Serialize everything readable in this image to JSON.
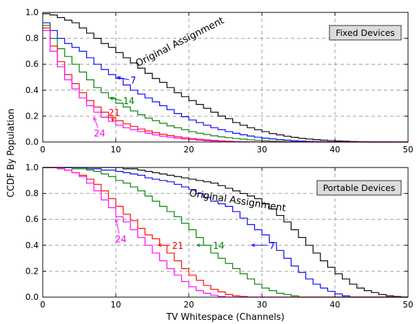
{
  "figure": {
    "ylabel": "CCDF By Population",
    "xlabel": "TV Whitespace (Channels)"
  },
  "chart_data": [
    {
      "type": "line",
      "step": true,
      "title": "Fixed Devices",
      "legend_placement": "top-right",
      "xlim": [
        0,
        50
      ],
      "ylim": [
        0,
        1.0
      ],
      "xticks": [
        "0",
        "10",
        "20",
        "30",
        "40",
        "50"
      ],
      "yticks": [
        "0.0",
        "0.2",
        "0.4",
        "0.6",
        "0.8",
        "1.0"
      ],
      "grid": true,
      "x": [
        0,
        1,
        2,
        3,
        4,
        5,
        6,
        7,
        8,
        9,
        10,
        11,
        12,
        13,
        14,
        15,
        16,
        17,
        18,
        19,
        20,
        21,
        22,
        23,
        24,
        25,
        26,
        27,
        28,
        29,
        30,
        31,
        32,
        33,
        34,
        35,
        36,
        37,
        38,
        39,
        40,
        41,
        42,
        43,
        44,
        45,
        46,
        47,
        48,
        49,
        50
      ],
      "series": [
        {
          "name": "Original Assignment",
          "color": "#000000",
          "values": [
            0.99,
            0.98,
            0.96,
            0.94,
            0.92,
            0.88,
            0.84,
            0.8,
            0.76,
            0.73,
            0.69,
            0.65,
            0.61,
            0.57,
            0.53,
            0.49,
            0.46,
            0.42,
            0.38,
            0.35,
            0.32,
            0.29,
            0.26,
            0.23,
            0.2,
            0.18,
            0.15,
            0.13,
            0.11,
            0.095,
            0.08,
            0.065,
            0.055,
            0.045,
            0.036,
            0.029,
            0.023,
            0.018,
            0.014,
            0.011,
            0.008,
            0.006,
            0.004,
            0.003,
            0.002,
            0.0015,
            0.001,
            0.0007,
            0.0004,
            0.0002,
            0.0
          ]
        },
        {
          "name": "7",
          "color": "#0000ff",
          "values": [
            0.92,
            0.86,
            0.8,
            0.76,
            0.73,
            0.7,
            0.65,
            0.6,
            0.56,
            0.52,
            0.49,
            0.44,
            0.4,
            0.37,
            0.34,
            0.31,
            0.28,
            0.25,
            0.22,
            0.195,
            0.17,
            0.15,
            0.13,
            0.11,
            0.095,
            0.08,
            0.067,
            0.056,
            0.046,
            0.037,
            0.03,
            0.024,
            0.018,
            0.014,
            0.01,
            0.007,
            0.005,
            0.0035,
            0.0025,
            0.0018,
            0.0012,
            0.0008,
            0.0005,
            0.0003,
            0.0002,
            0.0001,
            0.0,
            0.0,
            0.0,
            0.0,
            0.0
          ]
        },
        {
          "name": "14",
          "color": "#008000",
          "values": [
            0.9,
            0.8,
            0.72,
            0.66,
            0.6,
            0.54,
            0.48,
            0.42,
            0.38,
            0.34,
            0.3,
            0.27,
            0.24,
            0.21,
            0.185,
            0.165,
            0.145,
            0.125,
            0.11,
            0.095,
            0.08,
            0.068,
            0.058,
            0.048,
            0.04,
            0.033,
            0.027,
            0.022,
            0.017,
            0.013,
            0.01,
            0.007,
            0.005,
            0.0035,
            0.0025,
            0.0017,
            0.001,
            0.0006,
            0.0003,
            0.0001,
            0.0,
            0.0,
            0.0,
            0.0,
            0.0,
            0.0,
            0.0,
            0.0,
            0.0,
            0.0,
            0.0
          ]
        },
        {
          "name": "21",
          "color": "#ff0000",
          "values": [
            0.88,
            0.74,
            0.62,
            0.52,
            0.45,
            0.38,
            0.32,
            0.27,
            0.23,
            0.19,
            0.165,
            0.14,
            0.12,
            0.1,
            0.085,
            0.072,
            0.06,
            0.05,
            0.041,
            0.033,
            0.027,
            0.021,
            0.016,
            0.012,
            0.009,
            0.006,
            0.004,
            0.0025,
            0.0015,
            0.0008,
            0.0,
            0.0,
            0.0,
            0.0,
            0.0,
            0.0,
            0.0,
            0.0,
            0.0,
            0.0,
            0.0,
            0.0,
            0.0,
            0.0,
            0.0,
            0.0,
            0.0,
            0.0,
            0.0,
            0.0,
            0.0
          ]
        },
        {
          "name": "24",
          "color": "#ff00ff",
          "values": [
            0.86,
            0.7,
            0.58,
            0.48,
            0.41,
            0.34,
            0.28,
            0.23,
            0.19,
            0.16,
            0.13,
            0.11,
            0.095,
            0.08,
            0.067,
            0.055,
            0.045,
            0.037,
            0.03,
            0.024,
            0.019,
            0.014,
            0.01,
            0.007,
            0.005,
            0.003,
            0.0018,
            0.001,
            0.0005,
            0.0002,
            0.0,
            0.0,
            0.0,
            0.0,
            0.0,
            0.0,
            0.0,
            0.0,
            0.0,
            0.0,
            0.0,
            0.0,
            0.0,
            0.0,
            0.0,
            0.0,
            0.0,
            0.0,
            0.0,
            0.0,
            0.0
          ]
        }
      ],
      "annotations": [
        {
          "text": "Original Assignment",
          "x": 13,
          "y": 0.58,
          "angle": -27,
          "color": "#000000"
        },
        {
          "text": "7",
          "x": 12,
          "y": 0.48,
          "color": "#0000ff",
          "arrow_to": [
            10.2,
            0.5
          ]
        },
        {
          "text": "14",
          "x": 11,
          "y": 0.32,
          "color": "#008000",
          "arrow_to": [
            9.2,
            0.34
          ]
        },
        {
          "text": "21",
          "x": 9,
          "y": 0.23,
          "color": "#ff0000",
          "arrow_to": [
            9.6,
            0.16
          ]
        },
        {
          "text": "24",
          "x": 7,
          "y": 0.07,
          "color": "#ff00ff",
          "arrow_to": [
            7,
            0.19
          ]
        }
      ]
    },
    {
      "type": "line",
      "step": true,
      "title": "Portable Devices",
      "legend_placement": "top-right",
      "xlim": [
        0,
        50
      ],
      "ylim": [
        0,
        1.0
      ],
      "xticks": [
        "0",
        "10",
        "20",
        "30",
        "40",
        "50"
      ],
      "yticks": [
        "0.0",
        "0.2",
        "0.4",
        "0.6",
        "0.8",
        "1.0"
      ],
      "grid": true,
      "x": [
        0,
        1,
        2,
        3,
        4,
        5,
        6,
        7,
        8,
        9,
        10,
        11,
        12,
        13,
        14,
        15,
        16,
        17,
        18,
        19,
        20,
        21,
        22,
        23,
        24,
        25,
        26,
        27,
        28,
        29,
        30,
        31,
        32,
        33,
        34,
        35,
        36,
        37,
        38,
        39,
        40,
        41,
        42,
        43,
        44,
        45,
        46,
        47,
        48,
        49,
        50
      ],
      "series": [
        {
          "name": "Original Assignment",
          "color": "#000000",
          "values": [
            1.0,
            1.0,
            1.0,
            1.0,
            1.0,
            1.0,
            1.0,
            1.0,
            1.0,
            1.0,
            1.0,
            0.99,
            0.99,
            0.98,
            0.97,
            0.96,
            0.95,
            0.94,
            0.93,
            0.92,
            0.91,
            0.9,
            0.89,
            0.88,
            0.86,
            0.84,
            0.82,
            0.8,
            0.78,
            0.76,
            0.72,
            0.68,
            0.63,
            0.58,
            0.52,
            0.46,
            0.4,
            0.34,
            0.28,
            0.23,
            0.18,
            0.14,
            0.1,
            0.07,
            0.05,
            0.035,
            0.02,
            0.01,
            0.005,
            0.0,
            0.0
          ]
        },
        {
          "name": "7",
          "color": "#0000ff",
          "values": [
            1.0,
            1.0,
            1.0,
            1.0,
            1.0,
            1.0,
            0.99,
            0.99,
            0.98,
            0.98,
            0.97,
            0.96,
            0.95,
            0.94,
            0.92,
            0.91,
            0.9,
            0.89,
            0.87,
            0.85,
            0.83,
            0.8,
            0.77,
            0.74,
            0.72,
            0.7,
            0.66,
            0.61,
            0.56,
            0.52,
            0.48,
            0.42,
            0.36,
            0.3,
            0.24,
            0.19,
            0.14,
            0.1,
            0.07,
            0.045,
            0.025,
            0.01,
            0.0,
            0.0,
            0.0,
            0.0,
            0.0,
            0.0,
            0.0,
            0.0,
            0.0
          ]
        },
        {
          "name": "14",
          "color": "#008000",
          "values": [
            1.0,
            1.0,
            1.0,
            1.0,
            0.99,
            0.99,
            0.98,
            0.97,
            0.95,
            0.93,
            0.9,
            0.88,
            0.85,
            0.82,
            0.78,
            0.74,
            0.7,
            0.66,
            0.62,
            0.57,
            0.52,
            0.46,
            0.4,
            0.34,
            0.3,
            0.26,
            0.22,
            0.18,
            0.14,
            0.1,
            0.07,
            0.05,
            0.03,
            0.02,
            0.01,
            0.0,
            0.0,
            0.0,
            0.0,
            0.0,
            0.0,
            0.0,
            0.0,
            0.0,
            0.0,
            0.0,
            0.0,
            0.0,
            0.0,
            0.0,
            0.0
          ]
        },
        {
          "name": "21",
          "color": "#ff0000",
          "values": [
            1.0,
            1.0,
            0.99,
            0.98,
            0.96,
            0.94,
            0.91,
            0.87,
            0.82,
            0.76,
            0.7,
            0.64,
            0.59,
            0.53,
            0.48,
            0.45,
            0.4,
            0.34,
            0.28,
            0.22,
            0.17,
            0.13,
            0.09,
            0.06,
            0.04,
            0.02,
            0.01,
            0.005,
            0.0,
            0.0,
            0.0,
            0.0,
            0.0,
            0.0,
            0.0,
            0.0,
            0.0,
            0.0,
            0.0,
            0.0,
            0.0,
            0.0,
            0.0,
            0.0,
            0.0,
            0.0,
            0.0,
            0.0,
            0.0,
            0.0,
            0.0
          ]
        },
        {
          "name": "24",
          "color": "#ff00ff",
          "values": [
            1.0,
            1.0,
            0.99,
            0.98,
            0.96,
            0.93,
            0.88,
            0.82,
            0.75,
            0.69,
            0.62,
            0.58,
            0.52,
            0.46,
            0.4,
            0.34,
            0.28,
            0.22,
            0.17,
            0.12,
            0.08,
            0.05,
            0.03,
            0.015,
            0.005,
            0.0,
            0.0,
            0.0,
            0.0,
            0.0,
            0.0,
            0.0,
            0.0,
            0.0,
            0.0,
            0.0,
            0.0,
            0.0,
            0.0,
            0.0,
            0.0,
            0.0,
            0.0,
            0.0,
            0.0,
            0.0,
            0.0,
            0.0,
            0.0,
            0.0,
            0.0
          ]
        }
      ],
      "annotations": [
        {
          "text": "Original Assignment",
          "x": 20,
          "y": 0.78,
          "angle": 9,
          "color": "#000000"
        },
        {
          "text": "7",
          "x": 31,
          "y": 0.4,
          "color": "#0000ff",
          "arrow_from": [
            28.6,
            0.4
          ]
        },
        {
          "text": "14",
          "x": 23.3,
          "y": 0.4,
          "color": "#008000",
          "arrow_from": [
            21.1,
            0.4
          ]
        },
        {
          "text": "21",
          "x": 17.7,
          "y": 0.4,
          "color": "#ff0000",
          "arrow_from": [
            15.8,
            0.4
          ]
        },
        {
          "text": "24",
          "x": 9.9,
          "y": 0.45,
          "color": "#ff00ff",
          "arrow_to": [
            10,
            0.6
          ]
        }
      ]
    }
  ]
}
